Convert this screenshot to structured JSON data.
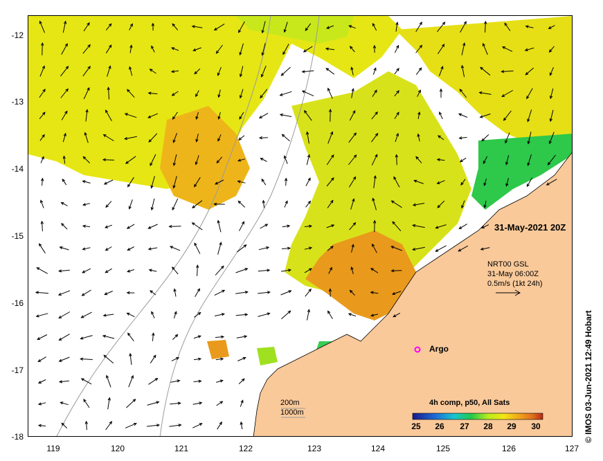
{
  "map": {
    "lon_ticks": [
      "119",
      "120",
      "121",
      "122",
      "123",
      "124",
      "125",
      "126",
      "127"
    ],
    "lat_ticks": [
      "-12",
      "-13",
      "-14",
      "-15",
      "-16",
      "-17",
      "-18"
    ],
    "date_label": "31-May-2021 20Z",
    "vector_legend": {
      "line1": "NRT00 GSL",
      "line2": "31-May 06:00Z",
      "line3": "0.5m/s (1kt 24h)"
    },
    "argo_label": "Argo",
    "depth_labels": {
      "shallow": "200m",
      "deep": "1000m"
    },
    "colorbar": {
      "title": "4h comp, p50, All Sats",
      "ticks": [
        "25",
        "26",
        "27",
        "28",
        "29",
        "30"
      ]
    },
    "credit": "© IMOS 03-Jun-2021 12:49 Hobart",
    "colors": {
      "land": "#f9c99a",
      "argo": "#ff00ff",
      "contour": "#9a9a9a"
    }
  }
}
